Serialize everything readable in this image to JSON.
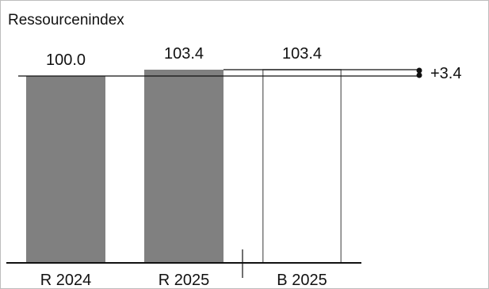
{
  "chart_data": {
    "type": "bar",
    "title": "Ressourcenindex",
    "categories": [
      "R 2024",
      "R 2025",
      "B 2025"
    ],
    "series": [
      {
        "values": [
          100.0,
          103.4,
          103.4
        ]
      }
    ],
    "value_labels": [
      "100.0",
      "103.4",
      "103.4"
    ],
    "bar_styles": [
      "filled",
      "filled",
      "outline"
    ],
    "delta": {
      "value": 3.4,
      "label": "+3.4"
    },
    "ylim": [
      0,
      103.4
    ],
    "grid": false,
    "colors": {
      "filled": "#808080",
      "outline": "#7a7a7a",
      "line": "#111111",
      "background": "#ffffff"
    }
  }
}
